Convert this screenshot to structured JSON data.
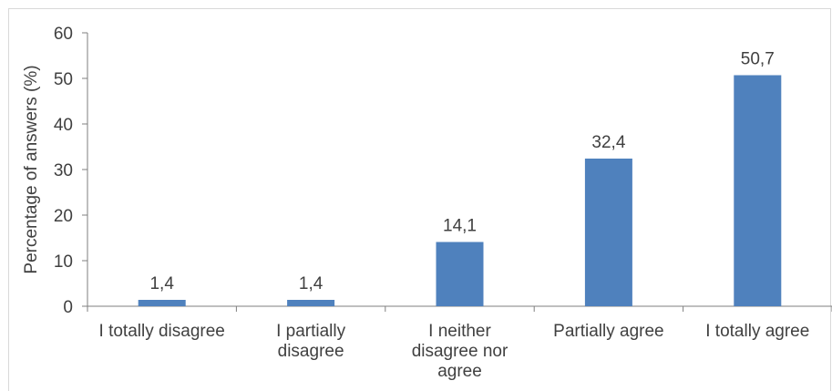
{
  "chart_data": {
    "type": "bar",
    "categories": [
      [
        "I totally disagree"
      ],
      [
        "I partially",
        "disagree"
      ],
      [
        "I neither",
        "disagree nor",
        "agree"
      ],
      [
        "Partially agree"
      ],
      [
        "I totally agree"
      ]
    ],
    "values": [
      1.4,
      1.4,
      14.1,
      32.4,
      50.7
    ],
    "data_labels": [
      "1,4",
      "1,4",
      "14,1",
      "32,4",
      "50,7"
    ],
    "ylabel": "Percentage of answers (%)",
    "xlabel": "",
    "ylim": [
      0,
      60
    ],
    "yticks": [
      0,
      10,
      20,
      30,
      40,
      50,
      60
    ],
    "grid": false,
    "legend": "none",
    "bar_color": "#4f81bd",
    "axis_color": "#7f7f7f"
  }
}
